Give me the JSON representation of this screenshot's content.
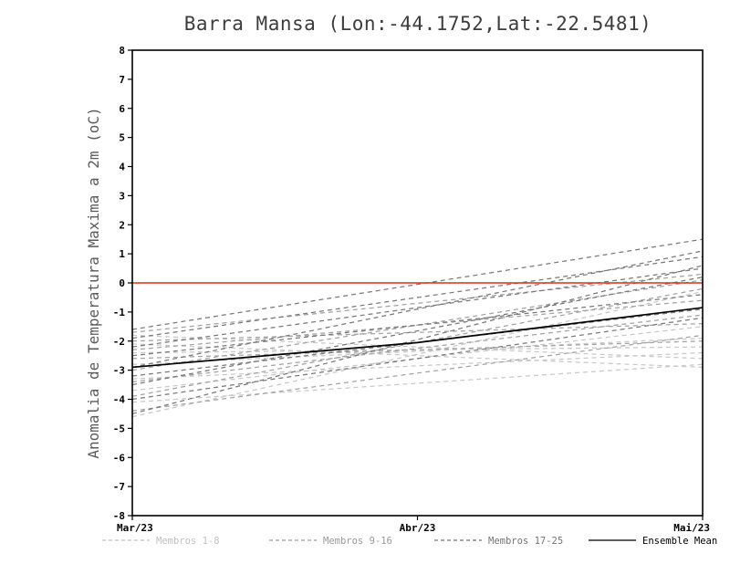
{
  "title": "Barra Mansa (Lon:-44.1752,Lat:-22.5481)",
  "ylabel": "Anomalia de Temperatura Maxima a 2m (oC)",
  "chart_data": {
    "type": "line",
    "x": [
      "Mar/23",
      "Abr/23",
      "Mai/23"
    ],
    "ylim": [
      -8,
      8
    ],
    "ytick_step": 1,
    "grid": false,
    "zero_line": {
      "value": 0,
      "color": "#dd2a22"
    },
    "groups": [
      {
        "name": "Membros 1-8",
        "color": "#c8c8c8",
        "dashed": true,
        "series": [
          [
            -1.8,
            -2.6
          ],
          [
            -2.1,
            -2.9
          ],
          [
            -2.4,
            -2.2
          ],
          [
            -2.8,
            -1.9
          ],
          [
            -3.3,
            -2.4
          ],
          [
            -3.7,
            -1.5
          ],
          [
            -4.1,
            -2.8
          ],
          [
            -4.6,
            -0.3
          ]
        ]
      },
      {
        "name": "Membros 9-16",
        "color": "#a2a2a2",
        "dashed": true,
        "series": [
          [
            -1.7,
            0.3
          ],
          [
            -2.0,
            -1.4
          ],
          [
            -2.3,
            -0.6
          ],
          [
            -2.6,
            -2.0
          ],
          [
            -3.0,
            0.1
          ],
          [
            -3.4,
            -1.1
          ],
          [
            -3.9,
            -0.2
          ],
          [
            -4.4,
            -1.8
          ]
        ]
      },
      {
        "name": "Membros 17-25",
        "color": "#787878",
        "dashed": true,
        "series": [
          [
            -1.6,
            1.5
          ],
          [
            -1.9,
            0.9
          ],
          [
            -2.2,
            0.5
          ],
          [
            -2.5,
            -0.4
          ],
          [
            -2.9,
            1.1
          ],
          [
            -3.2,
            -0.9
          ],
          [
            -3.5,
            0.2
          ],
          [
            -4.0,
            -1.2
          ],
          [
            -4.5,
            0.6
          ]
        ]
      }
    ],
    "ensemble_mean": {
      "name": "Ensemble Mean",
      "color": "#000000",
      "values": [
        -2.9,
        -2.05,
        -0.85
      ]
    }
  },
  "legend": {
    "items": [
      {
        "label": "Membros 1-8",
        "color": "#c0c0c0",
        "dashed": true
      },
      {
        "label": "Membros 9-16",
        "color": "#9a9a9a",
        "dashed": true
      },
      {
        "label": "Membros 17-25",
        "color": "#757575",
        "dashed": true
      },
      {
        "label": "Ensemble Mean",
        "color": "#000000",
        "dashed": false
      }
    ]
  }
}
